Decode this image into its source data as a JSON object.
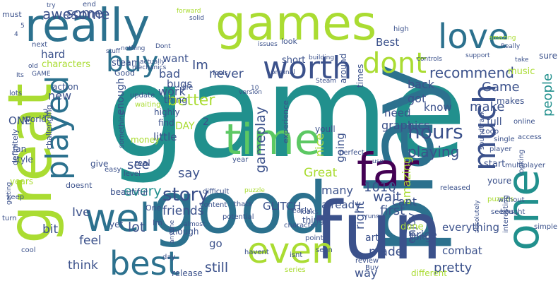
{
  "palette": [
    "#440154",
    "#472c7a",
    "#3b518b",
    "#2c718e",
    "#21908d",
    "#27ad81",
    "#5cc863",
    "#aadc32",
    "#fde725"
  ],
  "words": [
    {
      "text": "game",
      "weight": 100,
      "color": "#21908d"
    },
    {
      "text": "games",
      "weight": 72,
      "color": "#aadc32"
    },
    {
      "text": "play",
      "weight": 70,
      "color": "#2c718e"
    },
    {
      "text": "good",
      "weight": 64,
      "color": "#2c718e"
    },
    {
      "text": "fun",
      "weight": 62,
      "color": "#3b518b"
    },
    {
      "text": "great",
      "weight": 60,
      "color": "#aadc32"
    },
    {
      "text": "really",
      "weight": 50,
      "color": "#2c718e"
    },
    {
      "text": "time",
      "weight": 44,
      "color": "#5cc863"
    },
    {
      "text": "far",
      "weight": 42,
      "color": "#440154"
    },
    {
      "text": "one",
      "weight": 40,
      "color": "#21908d"
    },
    {
      "text": "even",
      "weight": 36,
      "color": "#aadc32"
    },
    {
      "text": "well",
      "weight": 36,
      "color": "#2c718e"
    },
    {
      "text": "love",
      "weight": 34,
      "color": "#2c718e"
    },
    {
      "text": "much",
      "weight": 32,
      "color": "#3b518b"
    },
    {
      "text": "played",
      "weight": 32,
      "color": "#2c718e"
    },
    {
      "text": "best",
      "weight": 32,
      "color": "#2c718e"
    },
    {
      "text": "worth",
      "weight": 30,
      "color": "#3b518b"
    },
    {
      "text": "dont",
      "weight": 28,
      "color": "#aadc32"
    },
    {
      "text": "buy",
      "weight": 26,
      "color": "#2c718e"
    },
    {
      "text": "hours",
      "weight": 20,
      "color": "#3b518b"
    },
    {
      "text": "story",
      "weight": 18,
      "color": "#3b518b"
    },
    {
      "text": "awesome",
      "weight": 14,
      "color": "#3b518b"
    },
    {
      "text": "some",
      "weight": 14,
      "color": "#3b518b"
    },
    {
      "text": "recommend",
      "weight": 14,
      "color": "#3b518b"
    },
    {
      "text": "playing",
      "weight": 14,
      "color": "#3b518b"
    },
    {
      "text": "every",
      "weight": 14,
      "color": "#21908d"
    },
    {
      "text": "better",
      "weight": 14,
      "color": "#aadc32"
    },
    {
      "text": "gameplay",
      "weight": 14,
      "color": "#3b518b"
    },
    {
      "text": "wait",
      "weight": 14,
      "color": "#3b518b"
    },
    {
      "text": "people",
      "weight": 12,
      "color": "#21908d"
    },
    {
      "text": "Game",
      "weight": 12,
      "color": "#3b518b"
    },
    {
      "text": "make",
      "weight": 12,
      "color": "#3b518b"
    },
    {
      "text": "Im",
      "weight": 12,
      "color": "#3b518b"
    },
    {
      "text": "Great",
      "weight": 12,
      "color": "#aadc32"
    },
    {
      "text": "1010",
      "weight": 12,
      "color": "#3b518b"
    },
    {
      "text": "first",
      "weight": 12,
      "color": "#3b518b"
    },
    {
      "text": "see",
      "weight": 12,
      "color": "#3b518b"
    },
    {
      "text": "say",
      "weight": 12,
      "color": "#3b518b"
    },
    {
      "text": "Ive",
      "weight": 12,
      "color": "#3b518b"
    },
    {
      "text": "lot",
      "weight": 12,
      "color": "#3b518b"
    },
    {
      "text": "feel",
      "weight": 12,
      "color": "#3b518b"
    },
    {
      "text": "bit",
      "weight": 12,
      "color": "#3b518b"
    },
    {
      "text": "still",
      "weight": 12,
      "color": "#3b518b"
    },
    {
      "text": "pretty",
      "weight": 12,
      "color": "#3b518b"
    },
    {
      "text": "made",
      "weight": 12,
      "color": "#3b518b"
    },
    {
      "text": "amazing",
      "weight": 12,
      "color": "#aadc32"
    },
    {
      "text": "graphics",
      "weight": 12,
      "color": "#3b518b"
    },
    {
      "text": "need",
      "weight": 12,
      "color": "#3b518b"
    },
    {
      "text": "back",
      "weight": 12,
      "color": "#3b518b"
    },
    {
      "text": "got",
      "weight": 12,
      "color": "#3b518b"
    },
    {
      "text": "know",
      "weight": 12,
      "color": "#3b518b"
    },
    {
      "text": "going",
      "weight": 12,
      "color": "#3b518b"
    },
    {
      "text": "nice",
      "weight": 12,
      "color": "#aadc32"
    },
    {
      "text": "friends",
      "weight": 12,
      "color": "#3b518b"
    },
    {
      "text": "many",
      "weight": 12,
      "color": "#3b518b"
    },
    {
      "text": "already",
      "weight": 12,
      "color": "#3b518b"
    },
    {
      "text": "cant",
      "weight": 12,
      "color": "#3b518b"
    },
    {
      "text": "right",
      "weight": 12,
      "color": "#3b518b"
    },
    {
      "text": "enjoy",
      "weight": 12,
      "color": "#3b518b"
    },
    {
      "text": "price",
      "weight": 12,
      "color": "#3b518b"
    },
    {
      "text": "way",
      "weight": 12,
      "color": "#3b518b"
    },
    {
      "text": "go",
      "weight": 12,
      "color": "#3b518b"
    },
    {
      "text": "think",
      "weight": 12,
      "color": "#3b518b"
    },
    {
      "text": "work",
      "weight": 12,
      "color": "#3b518b"
    },
    {
      "text": "never",
      "weight": 12,
      "color": "#3b518b"
    },
    {
      "text": "bugs",
      "weight": 12,
      "color": "#3b518b"
    },
    {
      "text": "bad",
      "weight": 12,
      "color": "#3b518b"
    },
    {
      "text": "want",
      "weight": 12,
      "color": "#3b518b"
    },
    {
      "text": "Best",
      "weight": 12,
      "color": "#3b518b"
    },
    {
      "text": "hard",
      "weight": 10,
      "color": "#3b518b"
    },
    {
      "text": "new",
      "weight": 10,
      "color": "#3b518b"
    },
    {
      "text": "little",
      "weight": 10,
      "color": "#3b518b"
    },
    {
      "text": "GLITCH",
      "weight": 10,
      "color": "#3b518b"
    },
    {
      "text": "DAY",
      "weight": 10,
      "color": "#aadc32"
    },
    {
      "text": "ONE",
      "weight": 10,
      "color": "#3b518b"
    },
    {
      "text": "3",
      "weight": 10,
      "color": "#3b518b"
    },
    {
      "text": "2",
      "weight": 10,
      "color": "#3b518b"
    },
    {
      "text": "enough",
      "weight": 10,
      "color": "#3b518b"
    },
    {
      "text": "full",
      "weight": 10,
      "color": "#3b518b"
    },
    {
      "text": "everything",
      "weight": 10,
      "color": "#3b518b"
    },
    {
      "text": "combat",
      "weight": 10,
      "color": "#3b518b"
    },
    {
      "text": "long",
      "weight": 10,
      "color": "#3b518b"
    },
    {
      "text": "done",
      "weight": 10,
      "color": "#aadc32"
    },
    {
      "text": "art",
      "weight": 10,
      "color": "#3b518b"
    },
    {
      "text": "characters",
      "weight": 9,
      "color": "#aadc32"
    },
    {
      "text": "steam",
      "weight": 9,
      "color": "#3b518b"
    },
    {
      "text": "thing",
      "weight": 9,
      "color": "#3b518b"
    },
    {
      "text": "short",
      "weight": 9,
      "color": "#3b518b"
    },
    {
      "text": "music",
      "weight": 9,
      "color": "#aadc32"
    },
    {
      "text": "sure",
      "weight": 9,
      "color": "#3b518b"
    },
    {
      "text": "start",
      "weight": 9,
      "color": "#3b518b"
    },
    {
      "text": "youre",
      "weight": 9,
      "color": "#3b518b"
    },
    {
      "text": "youll",
      "weight": 9,
      "color": "#3b518b"
    },
    {
      "text": "makes",
      "weight": 9,
      "color": "#3b518b"
    },
    {
      "text": "find",
      "weight": 9,
      "color": "#3b518b"
    },
    {
      "text": "highly",
      "weight": 9,
      "color": "#3b518b"
    },
    {
      "text": "real",
      "weight": 9,
      "color": "#3b518b"
    },
    {
      "text": "give",
      "weight": 9,
      "color": "#3b518b"
    },
    {
      "text": "beautiful",
      "weight": 9,
      "color": "#3b518b"
    },
    {
      "text": "fan",
      "weight": 9,
      "color": "#3b518b"
    },
    {
      "text": "style",
      "weight": 9,
      "color": "#3b518b"
    },
    {
      "text": "years",
      "weight": 9,
      "color": "#aadc32"
    },
    {
      "text": "release",
      "weight": 9,
      "color": "#3b518b"
    },
    {
      "text": "different",
      "weight": 9,
      "color": "#aadc32"
    },
    {
      "text": "though",
      "weight": 9,
      "color": "#3b518b"
    },
    {
      "text": "yet",
      "weight": 9,
      "color": "#3b518b"
    },
    {
      "text": "doesnt",
      "weight": 9,
      "color": "#3b518b"
    },
    {
      "text": "world",
      "weight": 9,
      "color": "#3b518b"
    },
    {
      "text": "action",
      "weight": 9,
      "color": "#3b518b"
    },
    {
      "text": "challenging",
      "weight": 9,
      "color": "#3b518b"
    },
    {
      "text": "definitely",
      "weight": 9,
      "color": "#3b518b"
    },
    {
      "text": "money",
      "weight": 9,
      "color": "#aadc32"
    },
    {
      "text": "experience",
      "weight": 9,
      "color": "#3b518b"
    },
    {
      "text": "things",
      "weight": 9,
      "color": "#3b518b"
    },
    {
      "text": "early",
      "weight": 9,
      "color": "#3b518b"
    },
    {
      "text": "times",
      "weight": 9,
      "color": "#3b518b"
    },
    {
      "text": "around",
      "weight": 9,
      "color": "#3b518b"
    },
    {
      "text": "must",
      "weight": 8,
      "color": "#3b518b"
    },
    {
      "text": "Good",
      "weight": 8,
      "color": "#3b518b"
    },
    {
      "text": "One",
      "weight": 8,
      "color": "#3b518b"
    },
    {
      "text": "Im",
      "weight": 8,
      "color": "#3b518b"
    },
    {
      "text": "end",
      "weight": 7,
      "color": "#3b518b"
    },
    {
      "text": "look",
      "weight": 7,
      "color": "#3b518b"
    },
    {
      "text": "high",
      "weight": 7,
      "color": "#3b518b"
    },
    {
      "text": "coop",
      "weight": 7,
      "color": "#3b518b"
    },
    {
      "text": "single",
      "weight": 7,
      "color": "#3b518b"
    },
    {
      "text": "online",
      "weight": 7,
      "color": "#3b518b"
    },
    {
      "text": "puzzles",
      "weight": 7,
      "color": "#aadc32"
    },
    {
      "text": "player",
      "weight": 7,
      "color": "#3b518b"
    },
    {
      "text": "perfect",
      "weight": 7,
      "color": "#3b518b"
    },
    {
      "text": "released",
      "weight": 7,
      "color": "#3b518b"
    },
    {
      "text": "looking",
      "weight": 7,
      "color": "#3b518b"
    },
    {
      "text": "soundtrack",
      "weight": 7,
      "color": "#3b518b"
    },
    {
      "text": "multiplayer",
      "weight": 7,
      "color": "#3b518b"
    },
    {
      "text": "access",
      "weight": 7,
      "color": "#3b518b"
    },
    {
      "text": "interesting",
      "weight": 7,
      "color": "#3b518b"
    },
    {
      "text": "bought",
      "weight": 7,
      "color": "#3b518b"
    },
    {
      "text": "something",
      "weight": 7,
      "color": "#3b518b"
    },
    {
      "text": "easy",
      "weight": 7,
      "color": "#3b518b"
    },
    {
      "text": "level",
      "weight": 7,
      "color": "#3b518b"
    },
    {
      "text": "difficult",
      "weight": 7,
      "color": "#3b518b"
    },
    {
      "text": "thats",
      "weight": 7,
      "color": "#3b518b"
    },
    {
      "text": "content",
      "weight": 7,
      "color": "#3b518b"
    },
    {
      "text": "potential",
      "weight": 7,
      "color": "#3b518b"
    },
    {
      "text": "looks",
      "weight": 7,
      "color": "#3b518b"
    },
    {
      "text": "review",
      "weight": 7,
      "color": "#3b518b"
    },
    {
      "text": "Buy",
      "weight": 7,
      "color": "#3b518b"
    },
    {
      "text": "series",
      "weight": 7,
      "color": "#aadc32"
    },
    {
      "text": "turn",
      "weight": 6,
      "color": "#3b518b"
    },
    {
      "text": "cool",
      "weight": 6,
      "color": "#3b518b"
    },
    {
      "text": "day",
      "weight": 6,
      "color": "#3b518b"
    },
    {
      "text": "getting",
      "weight": 6,
      "color": "#3b518b"
    },
    {
      "text": "lots",
      "weight": 6,
      "color": "#3b518b"
    },
    {
      "text": "update",
      "weight": 6,
      "color": "#3b518b"
    },
    {
      "text": "waiting",
      "weight": 6,
      "color": "#aadc32"
    },
    {
      "text": "life",
      "weight": 6,
      "color": "#3b518b"
    },
    {
      "text": "version",
      "weight": 6,
      "color": "#3b518b"
    },
    {
      "text": "year",
      "weight": 6,
      "color": "#3b518b"
    },
    {
      "text": "without",
      "weight": 6,
      "color": "#3b518b"
    },
    {
      "text": "seems",
      "weight": 6,
      "color": "#3b518b"
    },
    {
      "text": "simple",
      "weight": 6,
      "color": "#3b518b"
    },
    {
      "text": "absolutely",
      "weight": 6,
      "color": "#3b518b"
    },
    {
      "text": "character",
      "weight": 6,
      "color": "#3b518b"
    },
    {
      "text": "point",
      "weight": 6,
      "color": "#3b518b"
    },
    {
      "text": "seen",
      "weight": 6,
      "color": "#3b518b"
    },
    {
      "text": "isnt",
      "weight": 6,
      "color": "#3b518b"
    },
    {
      "text": "havent",
      "weight": 6,
      "color": "#3b518b"
    },
    {
      "text": "almost",
      "weight": 6,
      "color": "#3b518b"
    },
    {
      "text": "anyone",
      "weight": 6,
      "color": "#3b518b"
    },
    {
      "text": "keep",
      "weight": 6,
      "color": "#3b518b"
    },
    {
      "text": "puzzle",
      "weight": 6,
      "color": "#aadc32"
    },
    {
      "text": "use",
      "weight": 6,
      "color": "#3b518b"
    },
    {
      "text": "runs",
      "weight": 6,
      "color": "#3b518b"
    },
    {
      "text": "next",
      "weight": 6,
      "color": "#3b518b"
    },
    {
      "text": "old",
      "weight": 6,
      "color": "#3b518b"
    },
    {
      "text": "GAME",
      "weight": 6,
      "color": "#3b518b"
    },
    {
      "text": "Its",
      "weight": 6,
      "color": "#3b518b"
    },
    {
      "text": "try",
      "weight": 6,
      "color": "#3b518b"
    },
    {
      "text": "nothing",
      "weight": 6,
      "color": "#3b518b"
    },
    {
      "text": "stuff",
      "weight": 6,
      "color": "#3b518b"
    },
    {
      "text": "mechanics",
      "weight": 6,
      "color": "#3b518b"
    },
    {
      "text": "actually",
      "weight": 6,
      "color": "#3b518b"
    },
    {
      "text": "Dont",
      "weight": 6,
      "color": "#3b518b"
    },
    {
      "text": "solid",
      "weight": 6,
      "color": "#3b518b"
    },
    {
      "text": "forward",
      "weight": 6,
      "color": "#aadc32"
    },
    {
      "text": "original",
      "weight": 6,
      "color": "#3b518b"
    },
    {
      "text": "issues",
      "weight": 6,
      "color": "#3b518b"
    },
    {
      "text": "building",
      "weight": 6,
      "color": "#3b518b"
    },
    {
      "text": "controls",
      "weight": 6,
      "color": "#3b518b"
    },
    {
      "text": "Steam",
      "weight": 6,
      "color": "#3b518b"
    },
    {
      "text": "feels",
      "weight": 6,
      "color": "#3b518b"
    },
    {
      "text": "take",
      "weight": 6,
      "color": "#3b518b"
    },
    {
      "text": "support",
      "weight": 6,
      "color": "#3b518b"
    },
    {
      "text": "Really",
      "weight": 6,
      "color": "#3b518b"
    },
    {
      "text": "amazing",
      "weight": 6,
      "color": "#aadc32"
    },
    {
      "text": "10",
      "weight": 6,
      "color": "#3b518b"
    },
    {
      "text": "5",
      "weight": 6,
      "color": "#3b518b"
    },
    {
      "text": "4",
      "weight": 6,
      "color": "#3b518b"
    }
  ]
}
